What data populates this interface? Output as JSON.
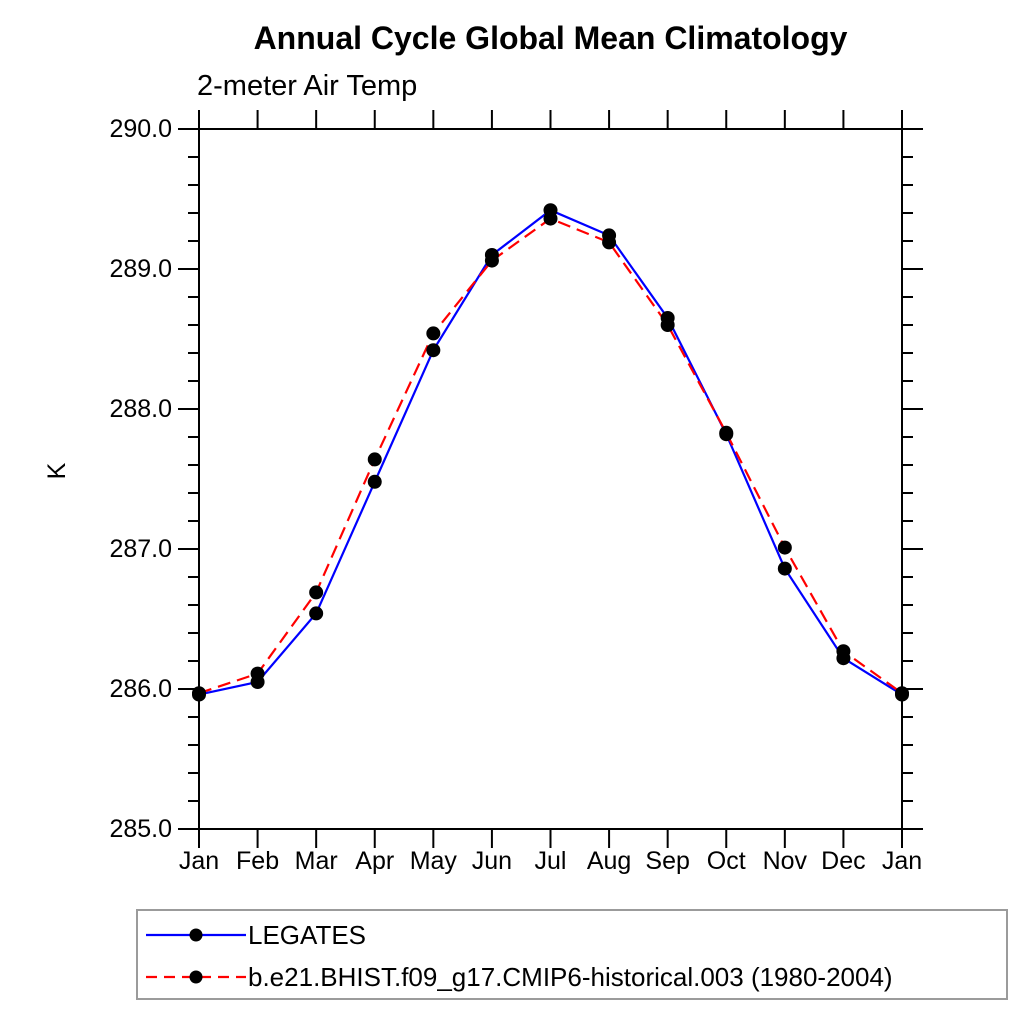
{
  "title": "Annual Cycle Global Mean Climatology",
  "subtitle": "2-meter Air Temp",
  "ylabel": "K",
  "axis_color": "#000000",
  "legend": {
    "border_color": "#9b9b9b",
    "position": "bottom-left"
  },
  "chart_data": {
    "type": "line",
    "x_categories": [
      "Jan",
      "Feb",
      "Mar",
      "Apr",
      "May",
      "Jun",
      "Jul",
      "Aug",
      "Sep",
      "Oct",
      "Nov",
      "Dec",
      "Jan"
    ],
    "ylim": [
      285.0,
      290.0
    ],
    "y_major_ticks": [
      285.0,
      286.0,
      287.0,
      288.0,
      289.0,
      290.0
    ],
    "y_tick_labels": [
      "285.0",
      "286.0",
      "287.0",
      "288.0",
      "289.0",
      "290.0"
    ],
    "y_minor_step": 0.2,
    "grid": false,
    "title": "Annual Cycle Global Mean Climatology",
    "subtitle": "2-meter Air Temp",
    "xlabel": "",
    "ylabel": "K",
    "series": [
      {
        "name": "LEGATES",
        "color": "#0000ff",
        "style": "solid",
        "marker": "filled-circle",
        "marker_color": "#000000",
        "values": [
          285.96,
          286.05,
          286.54,
          287.48,
          288.42,
          289.1,
          289.42,
          289.24,
          288.65,
          287.82,
          286.86,
          286.22,
          285.96
        ]
      },
      {
        "name": "b.e21.BHIST.f09_g17.CMIP6-historical.003 (1980-2004)",
        "color": "#ff0000",
        "style": "dashed",
        "marker": "filled-circle",
        "marker_color": "#000000",
        "values": [
          285.97,
          286.11,
          286.69,
          287.64,
          288.54,
          289.06,
          289.36,
          289.19,
          288.6,
          287.83,
          287.01,
          286.27,
          285.97
        ]
      }
    ]
  }
}
